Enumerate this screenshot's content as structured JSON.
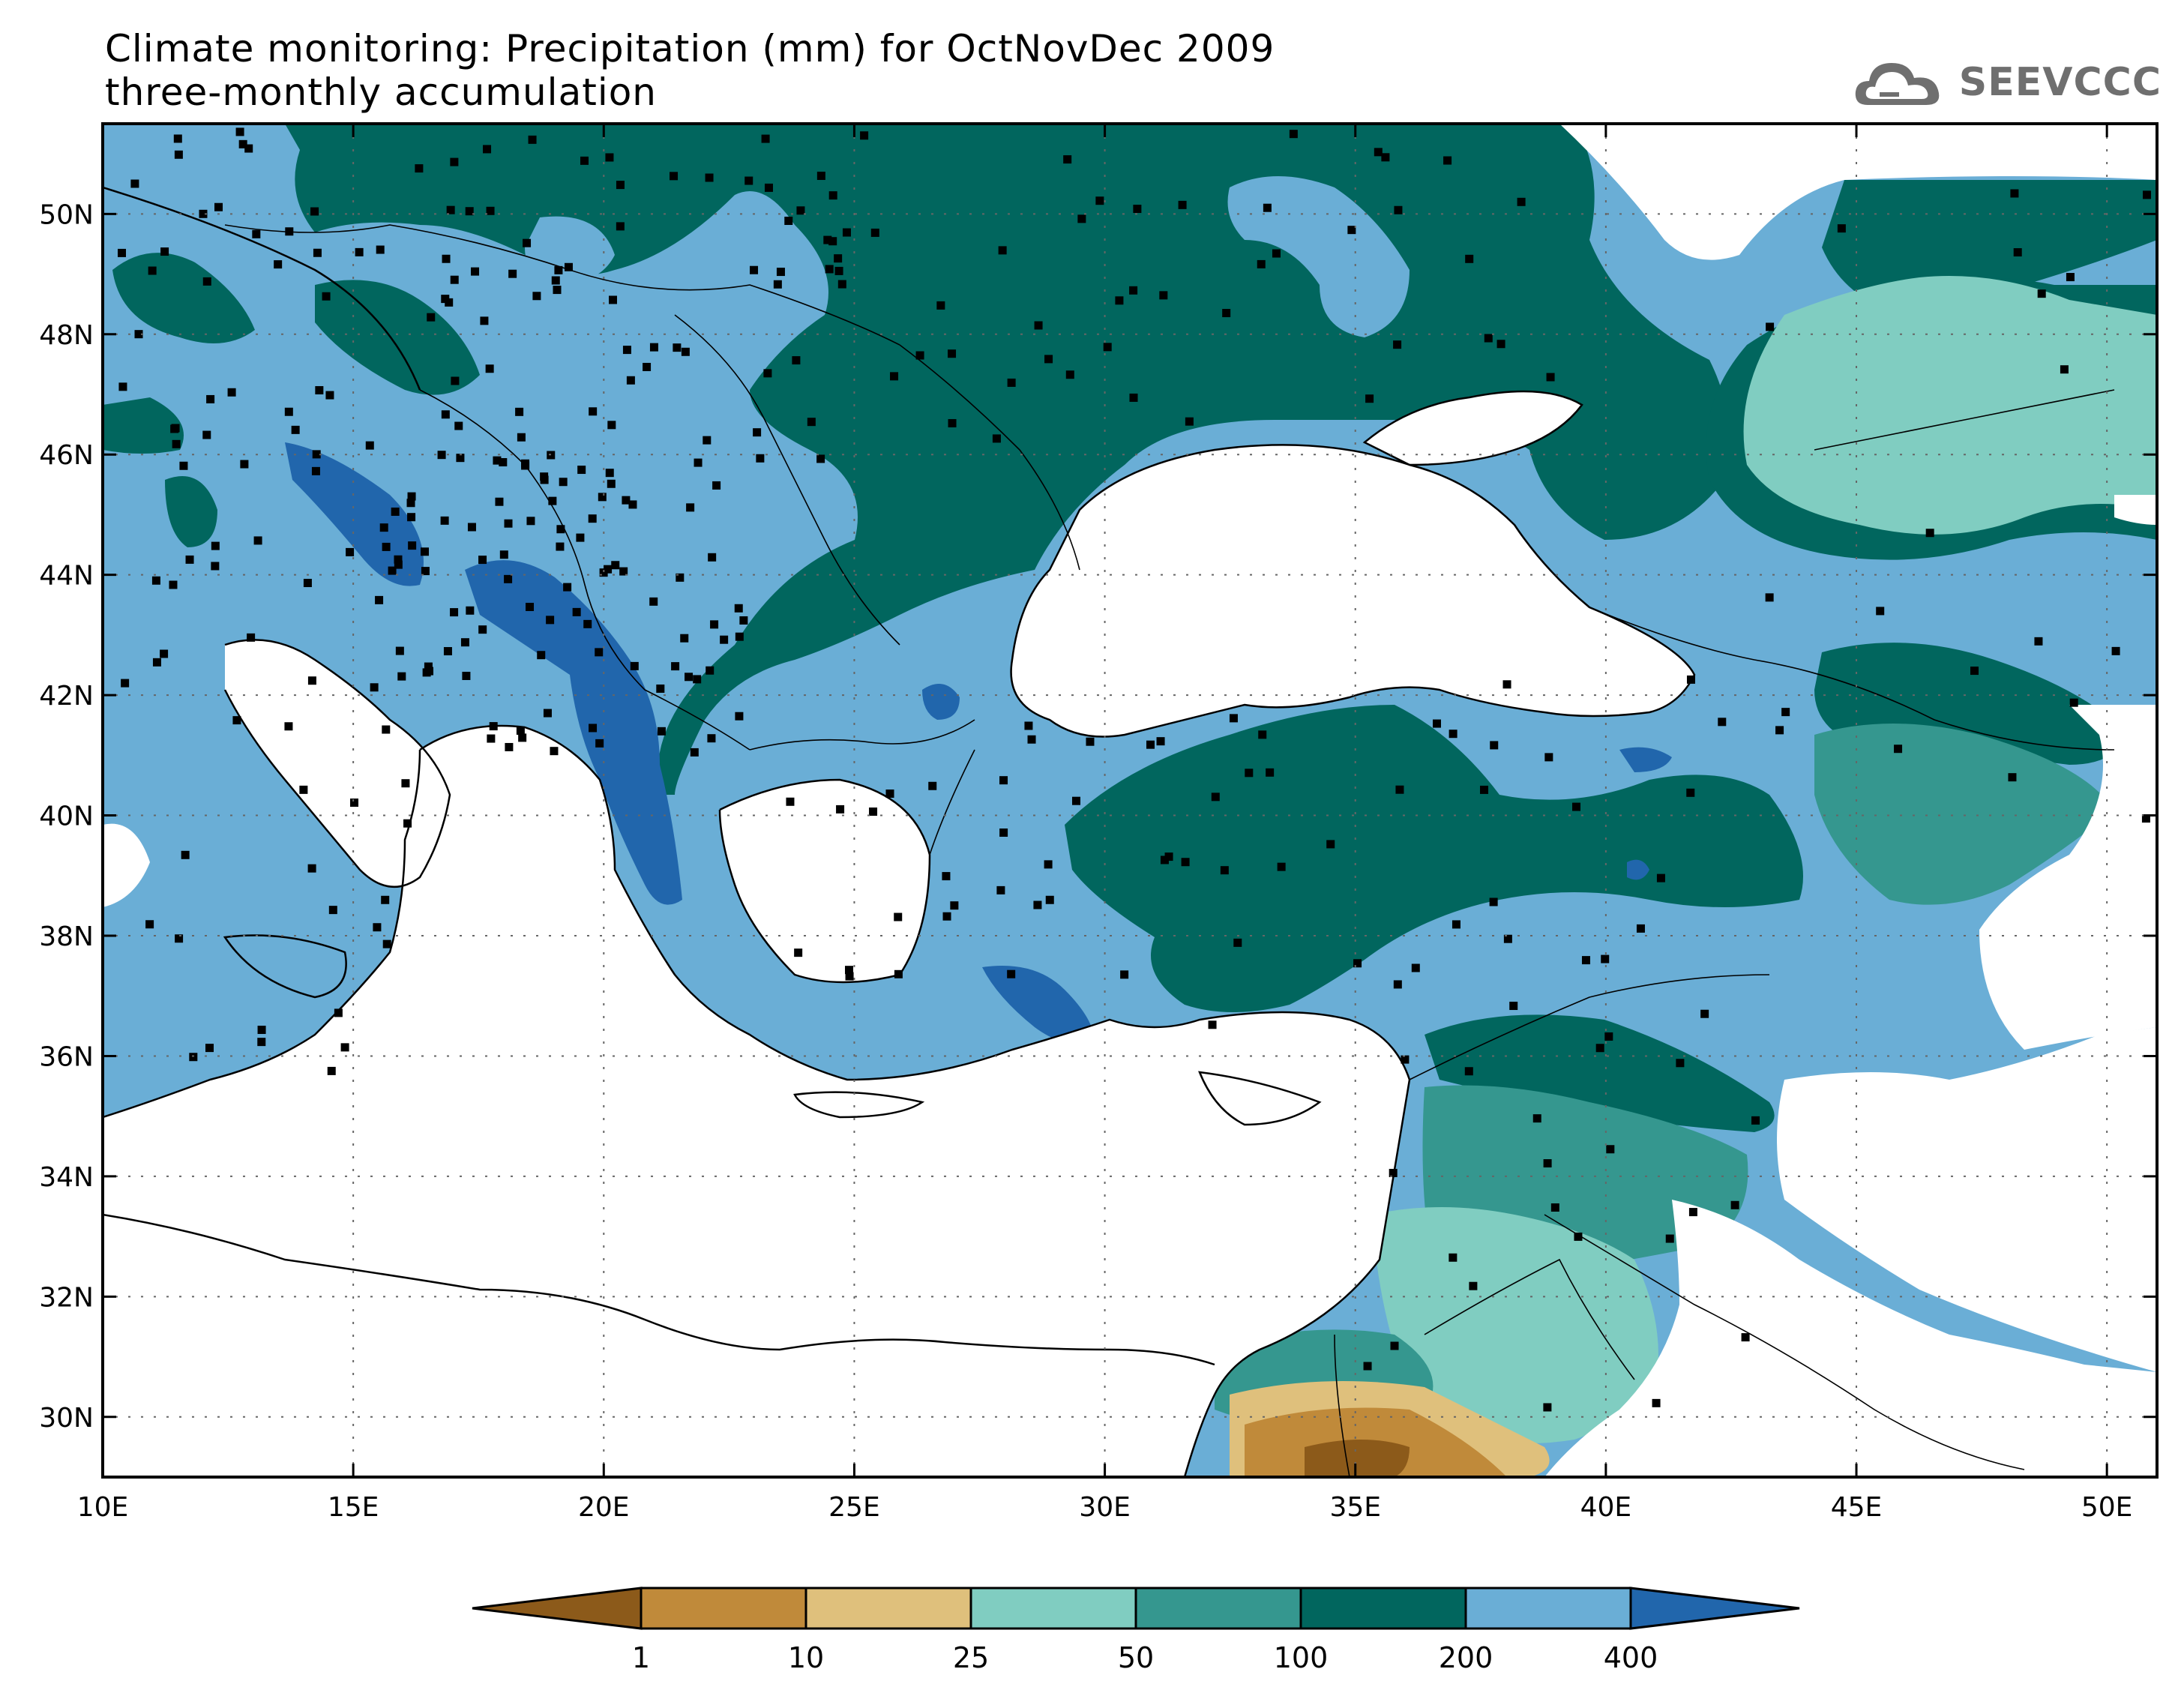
{
  "title": {
    "line1": "Climate monitoring: Precipitation (mm) for OctNovDec 2009",
    "line2": "three-monthly accumulation"
  },
  "logo": {
    "text": "SEEVCCC",
    "icon": "cloud-icon"
  },
  "map": {
    "lon_range": [
      10,
      51
    ],
    "lat_range": [
      29,
      51.5
    ],
    "x_ticks": [
      "10E",
      "15E",
      "20E",
      "25E",
      "30E",
      "35E",
      "40E",
      "45E",
      "50E"
    ],
    "y_ticks": [
      "30N",
      "32N",
      "34N",
      "36N",
      "38N",
      "40N",
      "42N",
      "44N",
      "46N",
      "48N",
      "50N"
    ],
    "grid": "dotted"
  },
  "colorbar": {
    "labels": [
      "1",
      "10",
      "25",
      "50",
      "100",
      "200",
      "400"
    ],
    "colors": [
      "#8c5a1a",
      "#c08a3a",
      "#dfc07c",
      "#80cdc1",
      "#35978f",
      "#01665e",
      "#6aaed6",
      "#2166ac"
    ]
  }
}
